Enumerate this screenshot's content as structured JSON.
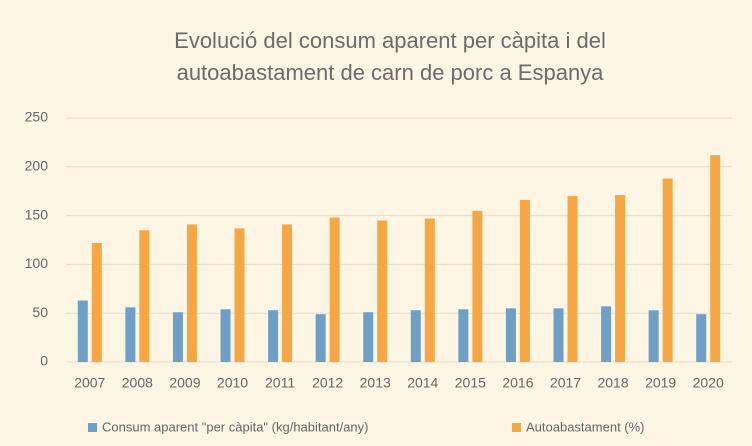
{
  "chart_data": {
    "type": "bar",
    "title": [
      "Evolució del consum aparent per càpita i del",
      "autoabastament de carn de porc a Espanya"
    ],
    "categories": [
      "2007",
      "2008",
      "2009",
      "2010",
      "2011",
      "2012",
      "2013",
      "2014",
      "2015",
      "2016",
      "2017",
      "2018",
      "2019",
      "2020"
    ],
    "series": [
      {
        "name": "Consum aparent \"per càpita\" (kg/habitant/any)",
        "color": "#6e9fc6",
        "values": [
          63,
          56,
          51,
          54,
          53,
          49,
          51,
          53,
          54,
          55,
          55,
          57,
          53,
          49
        ]
      },
      {
        "name": "Autoabastament (%)",
        "color": "#f6a744",
        "values": [
          122,
          135,
          141,
          137,
          141,
          148,
          145,
          147,
          155,
          166,
          170,
          171,
          188,
          212
        ]
      }
    ],
    "ylim": [
      0,
      250
    ],
    "yticks": [
      0,
      50,
      100,
      150,
      200,
      250
    ],
    "grid": true,
    "legend": "bottom"
  }
}
